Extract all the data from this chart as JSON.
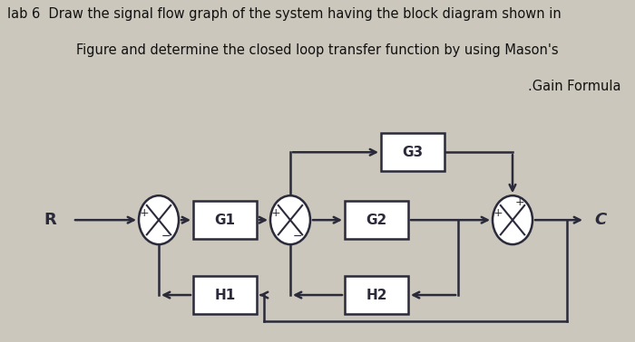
{
  "bg_color": "#ccc8be",
  "title_line1": "lab 6  Draw the signal flow graph of the system having the block diagram shown in",
  "title_line2": "Figure and determine the closed loop transfer function by using Mason's",
  "title_line3": ".Gain Formula",
  "title_fontsize": 10.5,
  "title_color": "#111111",
  "diagram_bg": "#d4d0c6"
}
